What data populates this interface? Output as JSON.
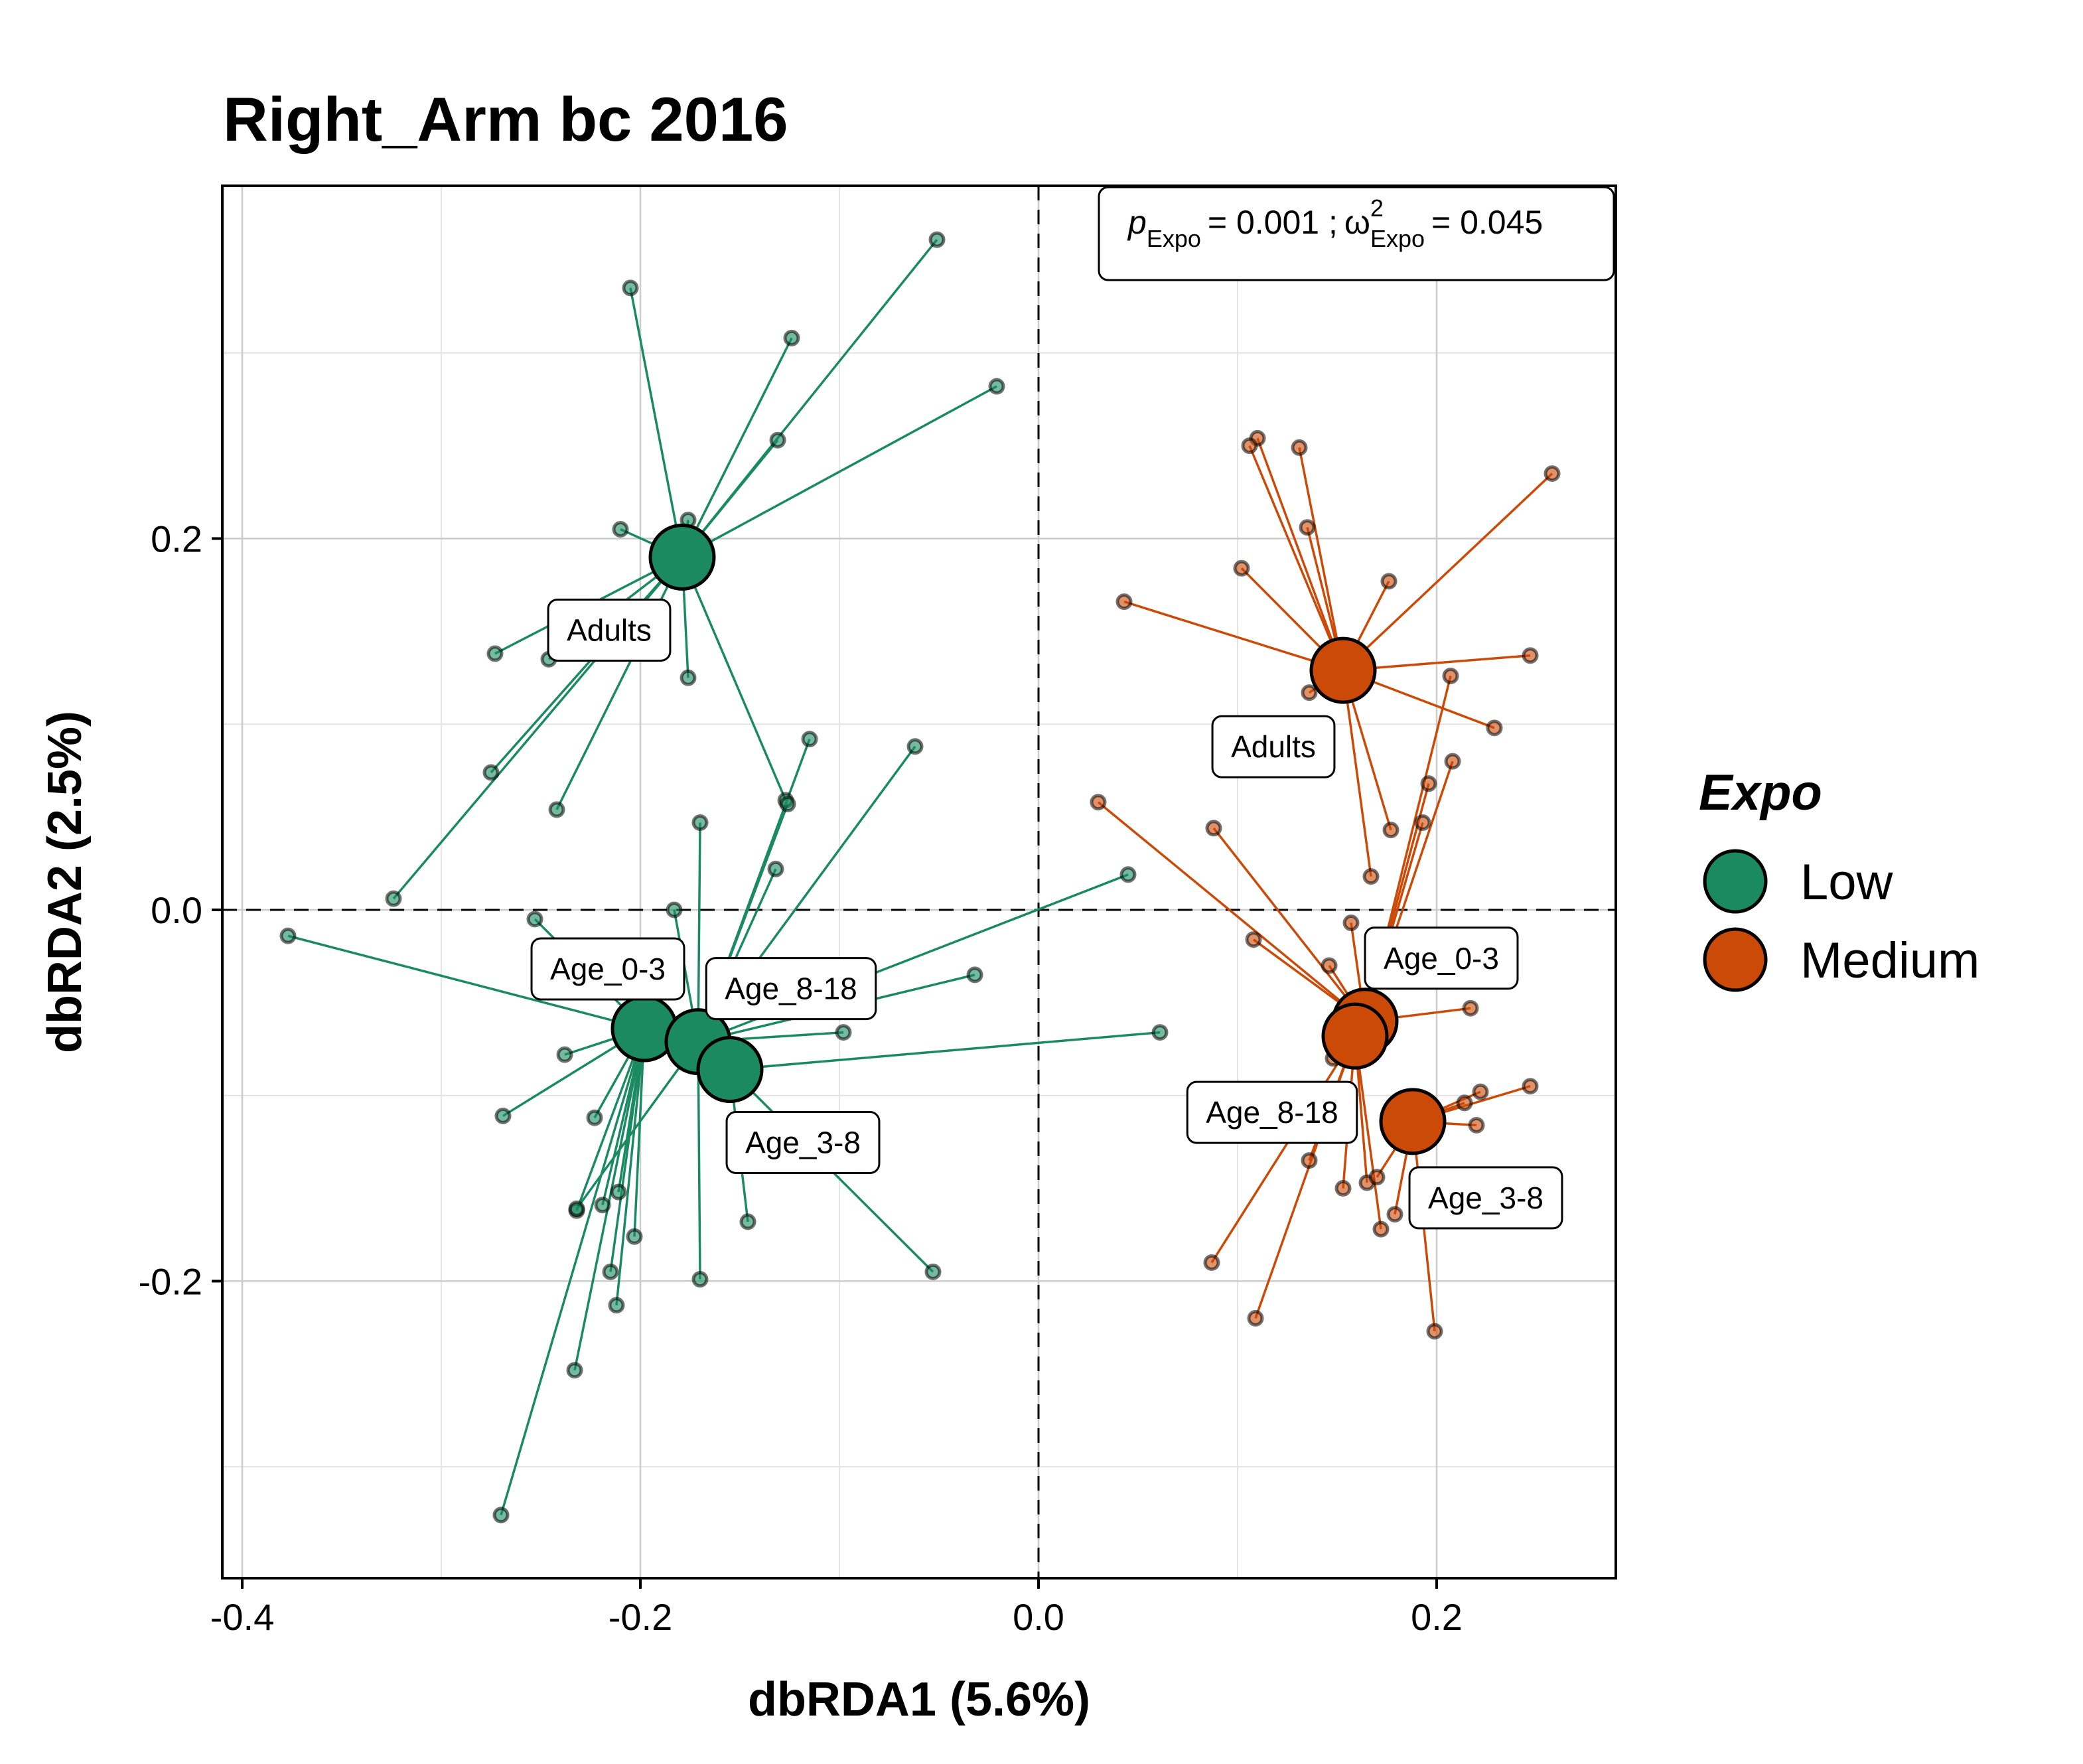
{
  "chart_data": {
    "type": "scatter",
    "title": "Right_Arm bc 2016",
    "xlabel": "dbRDA1 (5.6%)",
    "ylabel": "dbRDA2 (2.5%)",
    "xlim": [
      -0.41,
      0.29
    ],
    "ylim": [
      -0.36,
      0.39
    ],
    "x_ticks": [
      -0.4,
      -0.2,
      0.0,
      0.2
    ],
    "x_tick_labels": [
      "-0.4",
      "-0.2",
      "0.0",
      "0.2"
    ],
    "y_ticks": [
      -0.2,
      0.0,
      0.2
    ],
    "y_tick_labels": [
      "-0.2",
      "0.0",
      "0.2"
    ],
    "x_minor_grid": [
      -0.3,
      -0.1,
      0.1
    ],
    "y_minor_grid": [
      -0.3,
      -0.1,
      0.1,
      0.3
    ],
    "grid": true,
    "reference_lines": {
      "x": 0,
      "y": 0,
      "style": "dashed"
    },
    "annotation": {
      "p_symbol": "p",
      "omega_symbol": "ω",
      "subscript": "Expo",
      "superscript": "2",
      "p_value": "= 0.001 ;",
      "omega_value": "= 0.045"
    },
    "legend": {
      "title": "Expo",
      "placement": "right",
      "entries": [
        "Low",
        "Medium"
      ]
    },
    "series": [
      {
        "name": "Low",
        "color": "#1B8A63",
        "centroids": [
          {
            "label": "Adults",
            "x": -0.179,
            "y": 0.19,
            "points": [
              [
                -0.051,
                0.361
              ],
              [
                -0.205,
                0.335
              ],
              [
                -0.124,
                0.308
              ],
              [
                -0.021,
                0.282
              ],
              [
                -0.131,
                0.253
              ],
              [
                -0.176,
                0.21
              ],
              [
                -0.21,
                0.205
              ],
              [
                -0.273,
                0.138
              ],
              [
                -0.246,
                0.135
              ],
              [
                -0.176,
                0.125
              ],
              [
                -0.275,
                0.074
              ],
              [
                -0.242,
                0.054
              ],
              [
                -0.127,
                0.059
              ],
              [
                -0.324,
                0.006
              ]
            ]
          },
          {
            "label": "Age_0-3",
            "x": -0.198,
            "y": -0.064,
            "points": [
              [
                -0.377,
                -0.014
              ],
              [
                -0.253,
                -0.005
              ],
              [
                -0.238,
                -0.078
              ],
              [
                -0.269,
                -0.111
              ],
              [
                -0.223,
                -0.112
              ],
              [
                -0.232,
                -0.162
              ],
              [
                -0.211,
                -0.152
              ],
              [
                -0.219,
                -0.159
              ],
              [
                -0.203,
                -0.176
              ],
              [
                -0.215,
                -0.195
              ],
              [
                -0.212,
                -0.213
              ],
              [
                -0.233,
                -0.248
              ],
              [
                -0.27,
                -0.326
              ]
            ]
          },
          {
            "label": "Age_8-18",
            "x": -0.171,
            "y": -0.071,
            "points": [
              [
                0.045,
                0.019
              ],
              [
                -0.183,
                0.0
              ],
              [
                -0.17,
                0.047
              ],
              [
                -0.132,
                0.022
              ],
              [
                -0.115,
                0.092
              ],
              [
                -0.126,
                0.057
              ],
              [
                -0.062,
                0.088
              ],
              [
                -0.032,
                -0.035
              ],
              [
                -0.098,
                -0.066
              ],
              [
                -0.232,
                -0.161
              ],
              [
                -0.17,
                -0.199
              ]
            ]
          },
          {
            "label": "Age_3-8",
            "x": -0.155,
            "y": -0.086,
            "points": [
              [
                0.061,
                -0.066
              ],
              [
                -0.146,
                -0.168
              ],
              [
                -0.053,
                -0.195
              ]
            ]
          }
        ]
      },
      {
        "name": "Medium",
        "color": "#CC4A08",
        "centroids": [
          {
            "label": "Adults",
            "x": 0.153,
            "y": 0.129,
            "points": [
              [
                0.11,
                0.254
              ],
              [
                0.106,
                0.25
              ],
              [
                0.131,
                0.249
              ],
              [
                0.258,
                0.235
              ],
              [
                0.135,
                0.206
              ],
              [
                0.102,
                0.184
              ],
              [
                0.176,
                0.177
              ],
              [
                0.043,
                0.166
              ],
              [
                0.247,
                0.137
              ],
              [
                0.136,
                0.117
              ],
              [
                0.229,
                0.098
              ],
              [
                0.177,
                0.043
              ],
              [
                0.167,
                0.018
              ]
            ]
          },
          {
            "label": "Age_0-3",
            "x": 0.164,
            "y": -0.06,
            "points": [
              [
                0.03,
                0.058
              ],
              [
                0.088,
                0.044
              ],
              [
                0.108,
                -0.016
              ],
              [
                0.146,
                -0.03
              ],
              [
                0.157,
                -0.007
              ],
              [
                0.208,
                0.08
              ],
              [
                0.196,
                0.068
              ],
              [
                0.193,
                0.047
              ],
              [
                0.207,
                0.126
              ],
              [
                0.217,
                -0.053
              ]
            ]
          },
          {
            "label": "Age_8-18",
            "x": 0.159,
            "y": -0.068,
            "points": [
              [
                0.136,
                -0.135
              ],
              [
                0.153,
                -0.15
              ],
              [
                0.148,
                -0.08
              ],
              [
                0.087,
                -0.19
              ],
              [
                0.109,
                -0.22
              ],
              [
                0.165,
                -0.147
              ],
              [
                0.172,
                -0.172
              ]
            ]
          },
          {
            "label": "Age_3-8",
            "x": 0.188,
            "y": -0.114,
            "points": [
              [
                0.222,
                -0.098
              ],
              [
                0.214,
                -0.104
              ],
              [
                0.247,
                -0.095
              ],
              [
                0.22,
                -0.116
              ],
              [
                0.17,
                -0.144
              ],
              [
                0.179,
                -0.164
              ],
              [
                0.199,
                -0.227
              ]
            ]
          }
        ]
      }
    ]
  }
}
